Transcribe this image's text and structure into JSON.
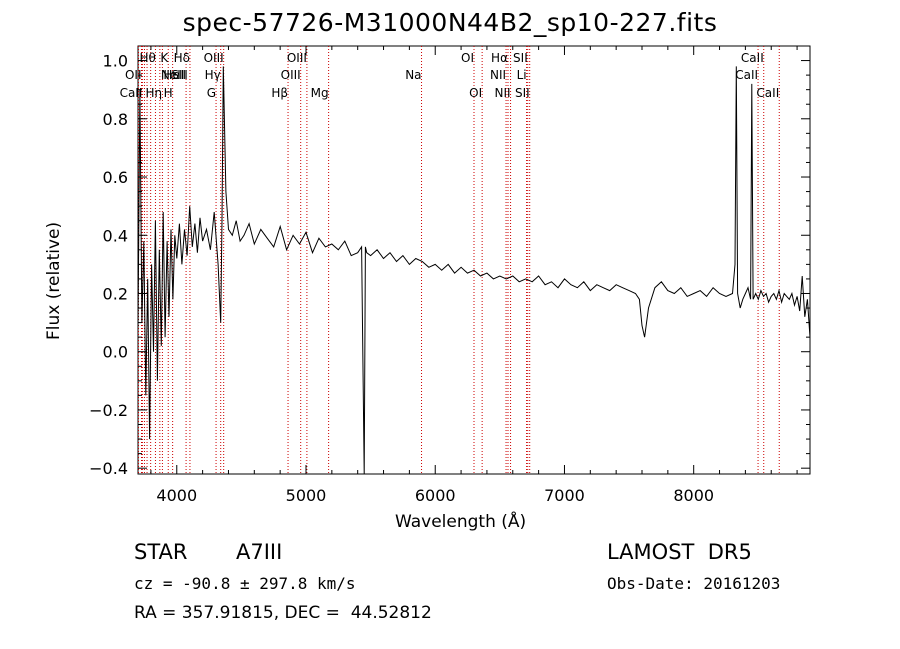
{
  "chart_data": {
    "type": "line",
    "title": "spec-57726-M31000N44B2_sp10-227.fits",
    "xlabel": "Wavelength (Å)",
    "ylabel": "Flux (relative)",
    "xlim": [
      3700,
      8900
    ],
    "ylim": [
      -0.42,
      1.05
    ],
    "x_ticks": [
      4000,
      5000,
      6000,
      7000,
      8000
    ],
    "x_tick_labels": [
      "4000",
      "5000",
      "6000",
      "7000",
      "8000"
    ],
    "y_ticks": [
      -0.4,
      -0.2,
      0.0,
      0.2,
      0.4,
      0.6,
      0.8,
      1.0
    ],
    "y_tick_labels": [
      "−0.4",
      "−0.2",
      "0.0",
      "0.2",
      "0.4",
      "0.6",
      "0.8",
      "1.0"
    ],
    "grid": false,
    "series": [
      {
        "color": "#000000",
        "x": [
          3700,
          3715,
          3730,
          3745,
          3760,
          3775,
          3790,
          3805,
          3820,
          3835,
          3850,
          3865,
          3880,
          3895,
          3910,
          3925,
          3940,
          3955,
          3970,
          3985,
          4000,
          4020,
          4040,
          4060,
          4080,
          4100,
          4120,
          4140,
          4160,
          4180,
          4200,
          4230,
          4260,
          4290,
          4320,
          4340,
          4350,
          4360,
          4380,
          4400,
          4430,
          4460,
          4490,
          4520,
          4560,
          4600,
          4650,
          4700,
          4750,
          4800,
          4850,
          4900,
          4950,
          5000,
          5050,
          5100,
          5150,
          5200,
          5250,
          5300,
          5350,
          5400,
          5430,
          5450,
          5460,
          5470,
          5500,
          5550,
          5600,
          5650,
          5700,
          5750,
          5800,
          5850,
          5900,
          5950,
          6000,
          6050,
          6100,
          6150,
          6200,
          6250,
          6300,
          6350,
          6400,
          6450,
          6500,
          6550,
          6600,
          6650,
          6700,
          6750,
          6800,
          6850,
          6900,
          6950,
          7000,
          7050,
          7100,
          7150,
          7200,
          7250,
          7300,
          7350,
          7400,
          7450,
          7500,
          7550,
          7580,
          7600,
          7620,
          7650,
          7700,
          7750,
          7800,
          7850,
          7900,
          7950,
          8000,
          8050,
          8100,
          8150,
          8200,
          8250,
          8300,
          8320,
          8330,
          8340,
          8360,
          8380,
          8400,
          8420,
          8440,
          8450,
          8460,
          8480,
          8500,
          8520,
          8540,
          8560,
          8580,
          8600,
          8620,
          8640,
          8660,
          8680,
          8700,
          8720,
          8740,
          8760,
          8780,
          8800,
          8820,
          8840,
          8860,
          8880,
          8900
        ],
        "y": [
          0.08,
          0.9,
          0.1,
          0.38,
          -0.15,
          0.25,
          -0.3,
          0.3,
          0.0,
          0.45,
          -0.1,
          0.35,
          0.02,
          0.48,
          0.05,
          0.38,
          0.12,
          0.42,
          0.18,
          0.4,
          0.32,
          0.44,
          0.3,
          0.42,
          0.33,
          0.5,
          0.36,
          0.44,
          0.34,
          0.46,
          0.38,
          0.42,
          0.35,
          0.48,
          0.3,
          0.1,
          0.45,
          0.98,
          0.55,
          0.42,
          0.4,
          0.45,
          0.38,
          0.4,
          0.44,
          0.37,
          0.42,
          0.39,
          0.36,
          0.43,
          0.35,
          0.4,
          0.37,
          0.41,
          0.34,
          0.39,
          0.36,
          0.37,
          0.35,
          0.38,
          0.33,
          0.34,
          0.36,
          -0.42,
          0.36,
          0.34,
          0.33,
          0.35,
          0.32,
          0.34,
          0.31,
          0.33,
          0.3,
          0.32,
          0.31,
          0.29,
          0.3,
          0.28,
          0.3,
          0.27,
          0.29,
          0.27,
          0.28,
          0.26,
          0.27,
          0.25,
          0.26,
          0.25,
          0.26,
          0.24,
          0.25,
          0.24,
          0.26,
          0.23,
          0.24,
          0.22,
          0.25,
          0.23,
          0.22,
          0.24,
          0.21,
          0.23,
          0.22,
          0.21,
          0.23,
          0.22,
          0.21,
          0.2,
          0.18,
          0.09,
          0.05,
          0.15,
          0.22,
          0.24,
          0.21,
          0.2,
          0.22,
          0.19,
          0.2,
          0.21,
          0.19,
          0.22,
          0.2,
          0.19,
          0.2,
          0.3,
          0.98,
          0.2,
          0.15,
          0.18,
          0.2,
          0.22,
          0.18,
          0.92,
          0.18,
          0.2,
          0.18,
          0.21,
          0.19,
          0.2,
          0.17,
          0.19,
          0.2,
          0.18,
          0.21,
          0.17,
          0.2,
          0.19,
          0.18,
          0.2,
          0.16,
          0.19,
          0.14,
          0.26,
          0.12,
          0.18,
          0.05
        ]
      }
    ],
    "line_markers": [
      {
        "x": 3704,
        "row": 1,
        "label": "Hθ",
        "anchor": "start"
      },
      {
        "x": 3727,
        "row": 2,
        "label": "OII",
        "anchor": "end"
      },
      {
        "x": 3734,
        "row": 3,
        "label": "CaII",
        "anchor": "end"
      },
      {
        "x": 3750,
        "row": 3,
        "label": "Hη",
        "anchor": "start"
      },
      {
        "x": 3770,
        "row": 1,
        "label": "",
        "anchor": "start"
      },
      {
        "x": 3798,
        "row": 1,
        "label": "",
        "anchor": "start"
      },
      {
        "x": 3835,
        "row": 1,
        "label": "",
        "anchor": "start"
      },
      {
        "x": 3869,
        "row": 2,
        "label": "NeIII",
        "anchor": "start"
      },
      {
        "x": 3889,
        "row": 2,
        "label": "He",
        "anchor": "start"
      },
      {
        "x": 3934,
        "row": 1,
        "label": "K",
        "anchor": "end"
      },
      {
        "x": 3968,
        "row": 3,
        "label": "H",
        "anchor": "end"
      },
      {
        "x": 4072,
        "row": 2,
        "label": "SII",
        "anchor": "end"
      },
      {
        "x": 4102,
        "row": 1,
        "label": "Hδ",
        "anchor": "end"
      },
      {
        "x": 4304,
        "row": 3,
        "label": "G",
        "anchor": "end"
      },
      {
        "x": 4340,
        "row": 2,
        "label": "Hγ",
        "anchor": "end"
      },
      {
        "x": 4363,
        "row": 1,
        "label": "OIII",
        "anchor": "end"
      },
      {
        "x": 4861,
        "row": 3,
        "label": "Hβ",
        "anchor": "end"
      },
      {
        "x": 4959,
        "row": 2,
        "label": "OIII",
        "anchor": "end"
      },
      {
        "x": 5007,
        "row": 1,
        "label": "OIII",
        "anchor": "end"
      },
      {
        "x": 5175,
        "row": 3,
        "label": "Mg",
        "anchor": "end"
      },
      {
        "x": 5894,
        "row": 2,
        "label": "Na",
        "anchor": "end"
      },
      {
        "x": 6300,
        "row": 1,
        "label": "OI",
        "anchor": "end"
      },
      {
        "x": 6363,
        "row": 3,
        "label": "OI",
        "anchor": "end"
      },
      {
        "x": 6548,
        "row": 2,
        "label": "NII",
        "anchor": "end"
      },
      {
        "x": 6563,
        "row": 1,
        "label": "Hα",
        "anchor": "end"
      },
      {
        "x": 6583,
        "row": 3,
        "label": "NII",
        "anchor": "end"
      },
      {
        "x": 6707,
        "row": 2,
        "label": "Li",
        "anchor": "end"
      },
      {
        "x": 6716,
        "row": 1,
        "label": "SII",
        "anchor": "end"
      },
      {
        "x": 6731,
        "row": 3,
        "label": "SII",
        "anchor": "end"
      },
      {
        "x": 8498,
        "row": 2,
        "label": "CaII",
        "anchor": "end"
      },
      {
        "x": 8542,
        "row": 1,
        "label": "CaII",
        "anchor": "end"
      },
      {
        "x": 8662,
        "row": 3,
        "label": "CaII",
        "anchor": "end"
      }
    ]
  },
  "info": {
    "object_class": "STAR",
    "subclass": "A7III",
    "survey": "LAMOST  DR5",
    "redshift": "cz = -90.8 ± 297.8 km/s",
    "obs_date": "Obs-Date: 20161203",
    "coords": "RA = 357.91815, DEC =  44.52812"
  }
}
